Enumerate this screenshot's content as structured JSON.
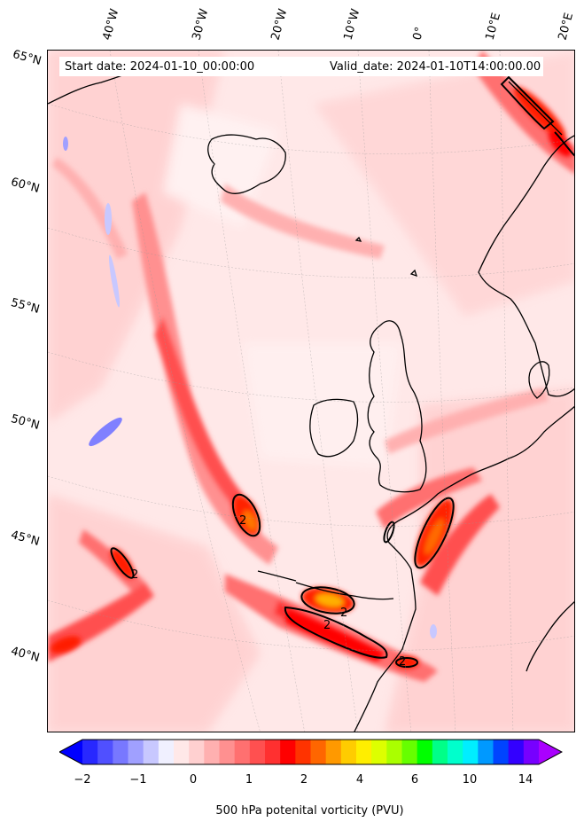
{
  "header": {
    "start_date": "Start date: 2024-01-10_00:00:00",
    "valid_date": "Valid_date: 2024-01-10T14:00:00.00"
  },
  "axes": {
    "longitude_labels": [
      "40°W",
      "30°W",
      "20°W",
      "10°W",
      "0°",
      "10°E",
      "20°E"
    ],
    "latitude_labels": [
      "65°N",
      "60°N",
      "55°N",
      "50°N",
      "45°N",
      "40°N"
    ]
  },
  "contour_labels": [
    "2",
    "2",
    "2",
    "2",
    "2"
  ],
  "colorbar": {
    "label": "500 hPa potenital vorticity (PVU)",
    "ticks": [
      "−2",
      "−1",
      "0",
      "1",
      "2",
      "4",
      "6",
      "10",
      "14"
    ],
    "colors": [
      "#0000ff",
      "#2828ff",
      "#5050ff",
      "#7878ff",
      "#a0a0ff",
      "#c8c8ff",
      "#f0f0ff",
      "#ffe8e8",
      "#ffd0d0",
      "#ffb0b0",
      "#ff9090",
      "#ff7070",
      "#ff5050",
      "#ff3030",
      "#ff0000",
      "#ff3300",
      "#ff6600",
      "#ff9900",
      "#ffcc00",
      "#ffee00",
      "#ddff00",
      "#aaff00",
      "#66ff00",
      "#00ff00",
      "#00ff88",
      "#00ffcc",
      "#00eeff",
      "#0099ff",
      "#0044ff",
      "#3300ff",
      "#7700ff",
      "#aa00ff"
    ]
  },
  "colors": {
    "background_field": "#ffe8e8",
    "high_pv": "#ff0000",
    "negative_pv": "#c8c8ff",
    "coastline": "#000000"
  }
}
